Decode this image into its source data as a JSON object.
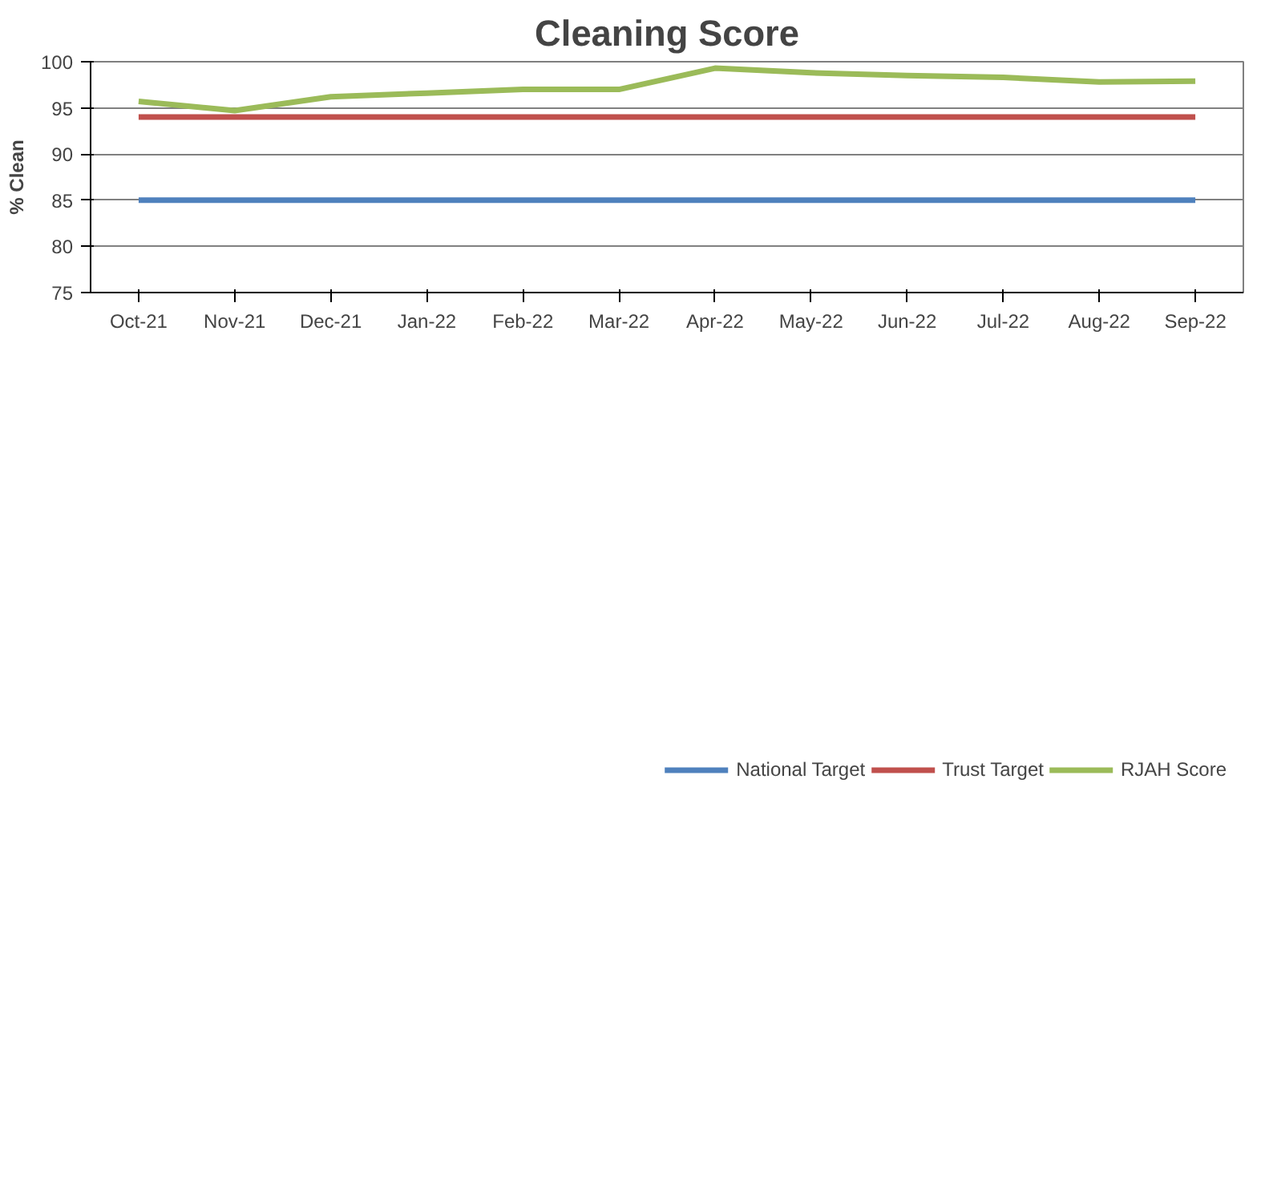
{
  "chart_data": {
    "type": "line",
    "title": "Cleaning Score",
    "ylabel": "% Clean",
    "categories": [
      "Oct-21",
      "Nov-21",
      "Dec-21",
      "Jan-22",
      "Feb-22",
      "Mar-22",
      "Apr-22",
      "May-22",
      "Jun-22",
      "Jul-22",
      "Aug-22",
      "Sep-22"
    ],
    "series": [
      {
        "name": "National Target",
        "color": "#4f81bd",
        "values": [
          85,
          85,
          85,
          85,
          85,
          85,
          85,
          85,
          85,
          85,
          85,
          85
        ]
      },
      {
        "name": "Trust Target",
        "color": "#c0504d",
        "values": [
          94,
          94,
          94,
          94,
          94,
          94,
          94,
          94,
          94,
          94,
          94,
          94
        ]
      },
      {
        "name": "RJAH Score",
        "color": "#9bbb59",
        "values": [
          95.7,
          94.7,
          96.2,
          96.6,
          97.0,
          97.0,
          99.3,
          98.8,
          98.5,
          98.3,
          97.8,
          97.9
        ]
      }
    ],
    "ylim": [
      75,
      100
    ],
    "yticks": [
      75,
      80,
      85,
      90,
      95,
      100
    ],
    "grid": "y",
    "legend": "bottom",
    "marker": "none",
    "line_style": "solid"
  }
}
